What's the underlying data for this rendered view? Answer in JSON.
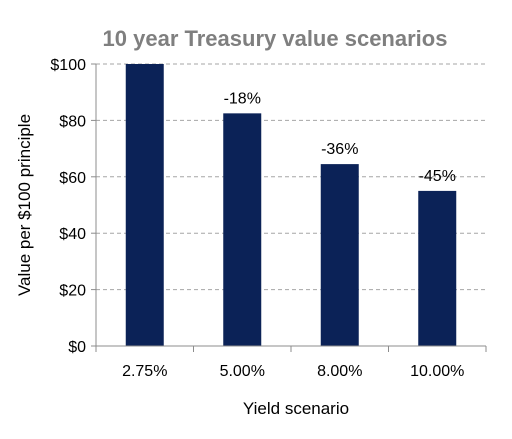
{
  "chart_data": {
    "type": "bar",
    "title": "10 year Treasury value scenarios",
    "xlabel": "Yield scenario",
    "ylabel": "Value per $100 principle",
    "categories": [
      "2.75%",
      "5.00%",
      "8.00%",
      "10.00%"
    ],
    "values": [
      100,
      82.5,
      64.5,
      55
    ],
    "data_labels": [
      "",
      "-18%",
      "-36%",
      "-45%"
    ],
    "ylim": [
      0,
      100
    ],
    "yticks": [
      0,
      20,
      40,
      60,
      80,
      100
    ],
    "ytick_labels": [
      "$0",
      "$20",
      "$40",
      "$60",
      "$80",
      "$100"
    ],
    "grid": true,
    "legend": "none",
    "colors": {
      "bar": "#0b2257",
      "title": "#7f7f7f",
      "grid": "#a6a6a6",
      "axis": "#8c8c8c",
      "text": "#000000"
    }
  }
}
